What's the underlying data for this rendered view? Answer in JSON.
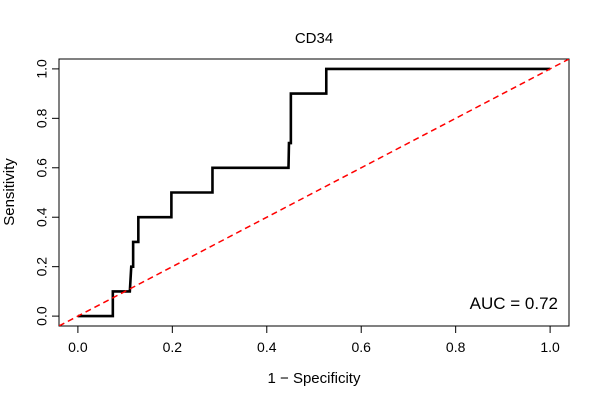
{
  "chart_data": {
    "type": "line",
    "title": "CD34",
    "xlabel": "1 − Specificity",
    "ylabel": "Sensitivity",
    "xlim": [
      -0.04,
      1.04
    ],
    "ylim": [
      -0.04,
      1.04
    ],
    "xticks": [
      0.0,
      0.2,
      0.4,
      0.6,
      0.8,
      1.0
    ],
    "xtick_labels": [
      "0.0",
      "0.2",
      "0.4",
      "0.6",
      "0.8",
      "1.0"
    ],
    "yticks": [
      0.0,
      0.2,
      0.4,
      0.6,
      0.8,
      1.0
    ],
    "ytick_labels": [
      "0.0",
      "0.2",
      "0.4",
      "0.6",
      "0.8",
      "1.0"
    ],
    "grid": false,
    "annotation": "AUC = 0.72",
    "series": [
      {
        "color": "#000000",
        "style": "solid",
        "x": [
          0.0,
          0.074,
          0.074,
          0.11,
          0.113,
          0.117,
          0.117,
          0.124,
          0.128,
          0.128,
          0.198,
          0.198,
          0.285,
          0.285,
          0.446,
          0.447,
          0.451,
          0.451,
          0.526,
          0.526,
          1.0
        ],
        "y": [
          0.0,
          0.0,
          0.1,
          0.1,
          0.2,
          0.2,
          0.3,
          0.3,
          0.3,
          0.4,
          0.4,
          0.5,
          0.5,
          0.6,
          0.6,
          0.7,
          0.7,
          0.9,
          0.9,
          1.0,
          1.0
        ]
      },
      {
        "color": "#ff0000",
        "style": "dashed",
        "x": [
          -0.04,
          1.04
        ],
        "y": [
          -0.04,
          1.04
        ]
      }
    ]
  }
}
